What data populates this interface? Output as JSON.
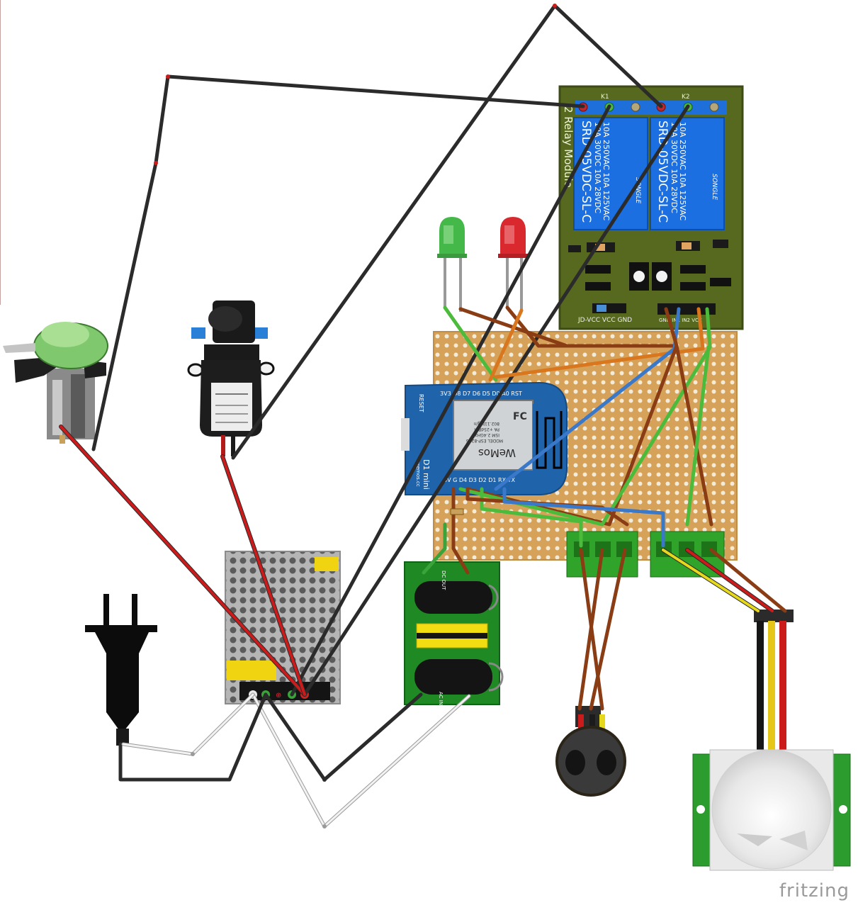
{
  "watermark": "fritzing",
  "relay_module": {
    "title": "2 Relay Module",
    "relay_label": "SRD-05VDC-SL-C",
    "brand": "SONGLE",
    "rating_1": "10A 250VAC 10A 125VAC",
    "rating_2": "10A 30VDC 10A 28VDC",
    "cqc": "CQC",
    "k1": "K1",
    "k2": "K2",
    "jumper_label": "JD-VCC  VCC  GND",
    "header_label": "GND IN1 IN2 VCC"
  },
  "d1_mini": {
    "top_pins": "3V3 D8 D7 D6 D5 D0 A0 RST",
    "bottom_pins": "5V  G  D4 D3 D2 D1 RX  TX",
    "reset": "RESET",
    "name": "D1 mini",
    "url": "wemos.cc",
    "model_lines": [
      "MODEL  ESP-8266",
      "ISM 2.4GHz",
      "PA +25dBm",
      "802.11b/g/n"
    ],
    "brand": "WeMos",
    "fcc": "FC"
  },
  "psu_module": {
    "out_label": "DC OUT",
    "in_label": "AC IN"
  },
  "power_supply": {
    "terminals": "⊕"
  },
  "colors": {
    "wire_black": "#2b2b2b",
    "wire_red": "#cc1b1b",
    "wire_green": "#4cbb3c",
    "wire_brown": "#8a3d14",
    "wire_orange": "#d9771e",
    "wire_blue": "#3a78c9",
    "wire_white": "#e8e8e8",
    "wire_yellow": "#e6d81a",
    "relay_board": "#556b1f",
    "relay_blue": "#1d6fd8",
    "perfboard": "#d9a75e",
    "wemos_blue": "#1f63a8"
  }
}
